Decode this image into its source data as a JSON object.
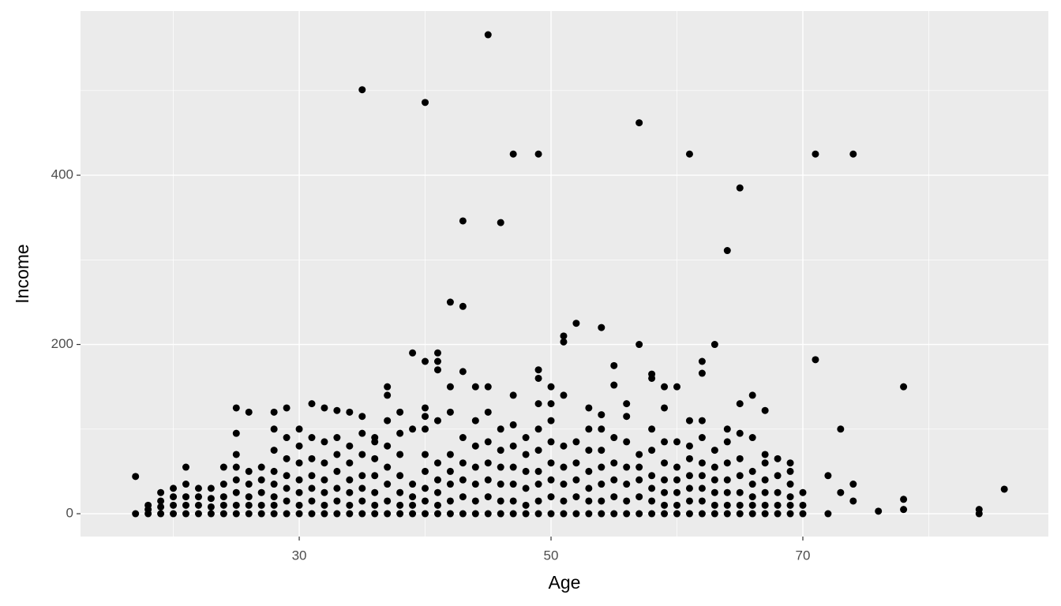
{
  "chart_data": {
    "type": "scatter",
    "x_label": "Age",
    "y_label": "Income",
    "color": "#000000",
    "grid": true,
    "xlim": [
      12.63,
      89.5
    ],
    "ylim": [
      -27,
      594
    ],
    "xticks": [
      30,
      50,
      70
    ],
    "yticks": [
      0,
      200,
      400
    ],
    "xminor": [
      20,
      40,
      60,
      80
    ],
    "yminor": [
      100,
      300,
      500
    ],
    "x": [
      18,
      18,
      18,
      19,
      19,
      19,
      19,
      20,
      20,
      20,
      20,
      21,
      21,
      21,
      21,
      22,
      22,
      22,
      22,
      23,
      23,
      23,
      23,
      24,
      24,
      24,
      24,
      24,
      25,
      25,
      25,
      25,
      25,
      25,
      26,
      26,
      26,
      26,
      26,
      27,
      27,
      27,
      27,
      27,
      28,
      28,
      28,
      28,
      28,
      28,
      28,
      29,
      29,
      29,
      29,
      29,
      29,
      30,
      30,
      30,
      30,
      30,
      30,
      30,
      31,
      31,
      31,
      31,
      31,
      31,
      32,
      32,
      32,
      32,
      32,
      32,
      33,
      33,
      33,
      33,
      33,
      33,
      34,
      34,
      34,
      34,
      34,
      34,
      35,
      35,
      35,
      35,
      35,
      35,
      36,
      36,
      36,
      36,
      36,
      36,
      37,
      37,
      37,
      37,
      37,
      37,
      38,
      38,
      38,
      38,
      38,
      38,
      39,
      39,
      39,
      39,
      39,
      40,
      40,
      40,
      40,
      40,
      40,
      40,
      41,
      41,
      41,
      41,
      41,
      41,
      42,
      42,
      42,
      42,
      42,
      42,
      43,
      43,
      43,
      43,
      43,
      44,
      44,
      44,
      44,
      44,
      44,
      45,
      45,
      45,
      45,
      45,
      45,
      46,
      46,
      46,
      46,
      46,
      46,
      47,
      47,
      47,
      47,
      47,
      47,
      48,
      48,
      48,
      48,
      48,
      48,
      49,
      49,
      49,
      49,
      49,
      49,
      49,
      50,
      50,
      50,
      50,
      50,
      50,
      51,
      51,
      51,
      51,
      51,
      52,
      52,
      52,
      52,
      52,
      53,
      53,
      53,
      53,
      53,
      53,
      54,
      54,
      54,
      54,
      54,
      54,
      55,
      55,
      55,
      55,
      55,
      56,
      56,
      56,
      56,
      56,
      56,
      57,
      57,
      57,
      57,
      57,
      58,
      58,
      58,
      58,
      58,
      58,
      59,
      59,
      59,
      59,
      59,
      59,
      59,
      60,
      60,
      60,
      60,
      60,
      60,
      61,
      61,
      61,
      61,
      61,
      61,
      62,
      62,
      62,
      62,
      62,
      62,
      63,
      63,
      63,
      63,
      63,
      63,
      64,
      64,
      64,
      64,
      64,
      64,
      64,
      65,
      65,
      65,
      65,
      65,
      65,
      66,
      66,
      66,
      66,
      66,
      66,
      67,
      67,
      67,
      67,
      67,
      67,
      68,
      68,
      68,
      68,
      68,
      69,
      69,
      69,
      69,
      69,
      69,
      35,
      40,
      45,
      47,
      49,
      57,
      61,
      71,
      74,
      65,
      64,
      43,
      46,
      42,
      43,
      52,
      54,
      51,
      51,
      57,
      63,
      39,
      41,
      41,
      40,
      41,
      43,
      49,
      49,
      55,
      58,
      58,
      62,
      62,
      71,
      78,
      37,
      37,
      44,
      45,
      50,
      59,
      60,
      55,
      47,
      51,
      66,
      73,
      84,
      84,
      86,
      76,
      78,
      78,
      72,
      74,
      74,
      73,
      72,
      70,
      70,
      70,
      17,
      17,
      21,
      25,
      26,
      25,
      28,
      29,
      31,
      32,
      33,
      34,
      35,
      36,
      38,
      40,
      42,
      54,
      56,
      61,
      62,
      65,
      67,
      50,
      53
    ],
    "values": [
      0,
      5,
      10,
      0,
      8,
      15,
      25,
      0,
      10,
      20,
      30,
      0,
      10,
      20,
      35,
      0,
      10,
      20,
      30,
      0,
      8,
      18,
      30,
      0,
      10,
      20,
      35,
      55,
      0,
      10,
      25,
      40,
      55,
      70,
      0,
      10,
      20,
      35,
      50,
      0,
      10,
      25,
      40,
      55,
      0,
      10,
      20,
      35,
      50,
      75,
      100,
      0,
      15,
      30,
      45,
      65,
      90,
      0,
      10,
      25,
      40,
      60,
      80,
      100,
      0,
      15,
      30,
      45,
      65,
      90,
      0,
      10,
      25,
      40,
      60,
      85,
      0,
      15,
      30,
      50,
      70,
      90,
      0,
      10,
      25,
      40,
      60,
      80,
      0,
      15,
      30,
      45,
      70,
      95,
      0,
      10,
      25,
      45,
      65,
      85,
      0,
      15,
      35,
      55,
      80,
      110,
      0,
      10,
      25,
      45,
      70,
      95,
      0,
      10,
      20,
      35,
      100,
      0,
      15,
      30,
      50,
      70,
      100,
      115,
      0,
      10,
      25,
      40,
      60,
      110,
      0,
      15,
      35,
      50,
      70,
      150,
      0,
      20,
      40,
      60,
      90,
      0,
      15,
      35,
      55,
      80,
      110,
      0,
      20,
      40,
      60,
      85,
      120,
      0,
      15,
      35,
      55,
      75,
      100,
      0,
      15,
      35,
      55,
      80,
      105,
      0,
      10,
      30,
      50,
      70,
      90,
      0,
      15,
      35,
      50,
      75,
      100,
      130,
      0,
      20,
      40,
      60,
      85,
      110,
      0,
      15,
      35,
      55,
      80,
      0,
      20,
      40,
      60,
      85,
      0,
      15,
      30,
      50,
      75,
      100,
      0,
      15,
      35,
      55,
      75,
      100,
      0,
      20,
      40,
      60,
      90,
      0,
      15,
      35,
      55,
      85,
      115,
      0,
      20,
      40,
      55,
      70,
      0,
      15,
      30,
      45,
      75,
      100,
      0,
      10,
      25,
      40,
      60,
      85,
      125,
      0,
      10,
      25,
      40,
      55,
      85,
      0,
      15,
      30,
      45,
      65,
      80,
      0,
      15,
      30,
      45,
      60,
      90,
      0,
      10,
      25,
      40,
      55,
      75,
      0,
      10,
      25,
      40,
      60,
      85,
      100,
      0,
      10,
      25,
      45,
      65,
      95,
      0,
      10,
      20,
      35,
      50,
      90,
      0,
      10,
      25,
      40,
      60,
      70,
      0,
      10,
      25,
      45,
      65,
      0,
      10,
      20,
      35,
      50,
      60,
      501,
      486,
      566,
      425,
      425,
      462,
      425,
      425,
      425,
      385,
      311,
      346,
      344,
      250,
      245,
      225,
      220,
      210,
      203,
      200,
      200,
      190,
      190,
      180,
      180,
      170,
      168,
      170,
      160,
      175,
      165,
      160,
      180,
      166,
      182,
      150,
      150,
      140,
      150,
      150,
      150,
      150,
      150,
      152,
      140,
      140,
      140,
      100,
      5,
      0,
      29,
      3,
      17,
      5,
      45,
      35,
      15,
      25,
      0,
      10,
      25,
      0,
      44,
      0,
      55,
      125,
      120,
      95,
      120,
      125,
      130,
      125,
      122,
      120,
      115,
      90,
      120,
      125,
      120,
      117,
      130,
      110,
      110,
      130,
      122,
      130,
      125
    ]
  }
}
